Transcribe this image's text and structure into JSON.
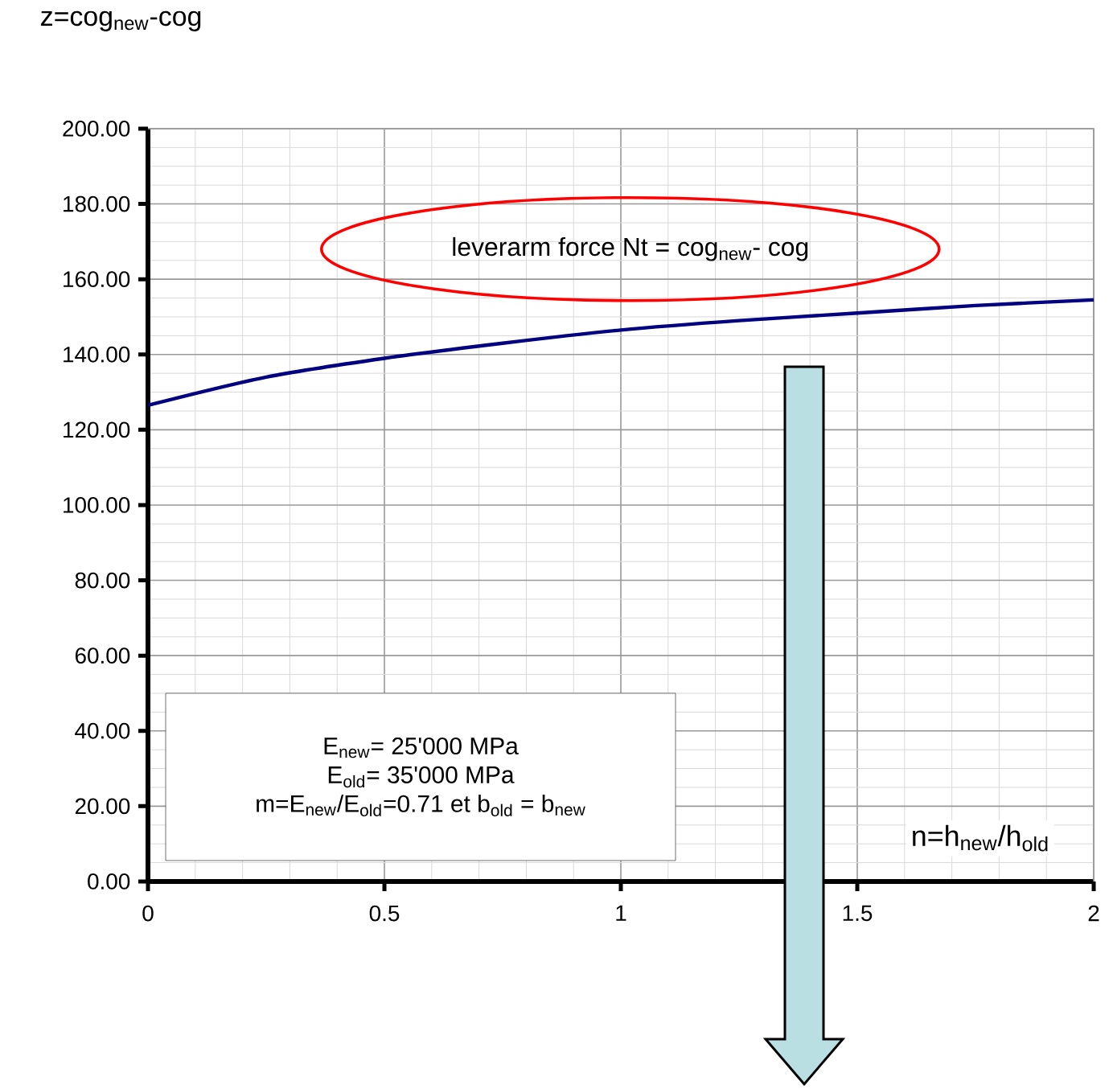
{
  "chart_data": {
    "type": "line",
    "ylabel": "z=cog$_{new}$-cog",
    "xlabel": "n=h$_{new}$/h$_{old}$",
    "x": [
      0,
      0.25,
      0.5,
      0.75,
      1,
      1.25,
      1.5,
      1.75,
      2
    ],
    "series": [
      {
        "color": "#000080",
        "values": [
          126.5,
          134,
          139,
          143,
          146.5,
          149,
          151,
          153,
          154.5
        ]
      }
    ],
    "xlim": [
      0,
      2
    ],
    "ylim": [
      0,
      200
    ],
    "xticks": [
      0,
      0.5,
      1,
      1.5,
      2
    ],
    "yticks": [
      {
        "value": 0,
        "label": "0.00"
      },
      {
        "value": 20,
        "label": "20.00"
      },
      {
        "value": 40,
        "label": "40.00"
      },
      {
        "value": 60,
        "label": "60.00"
      },
      {
        "value": 80,
        "label": "80.00"
      },
      {
        "value": 100,
        "label": "100.00"
      },
      {
        "value": 120,
        "label": "120.00"
      },
      {
        "value": 140,
        "label": "140.00"
      },
      {
        "value": 160,
        "label": "160.00"
      },
      {
        "value": 180,
        "label": "180.00"
      },
      {
        "value": 200,
        "label": "200.00"
      }
    ],
    "grid": true,
    "marker": "none",
    "line_style": "solid",
    "annotations": [
      "leverarm force Nt = cog$_{new}$- cog",
      "E$_{new}$= 25'000 MPa",
      "E$_{old}$= 35'000 MPa",
      "m=E$_{new}$/E$_{old}$=0.71 et b$_{old}$ = b$_{new}$"
    ]
  }
}
